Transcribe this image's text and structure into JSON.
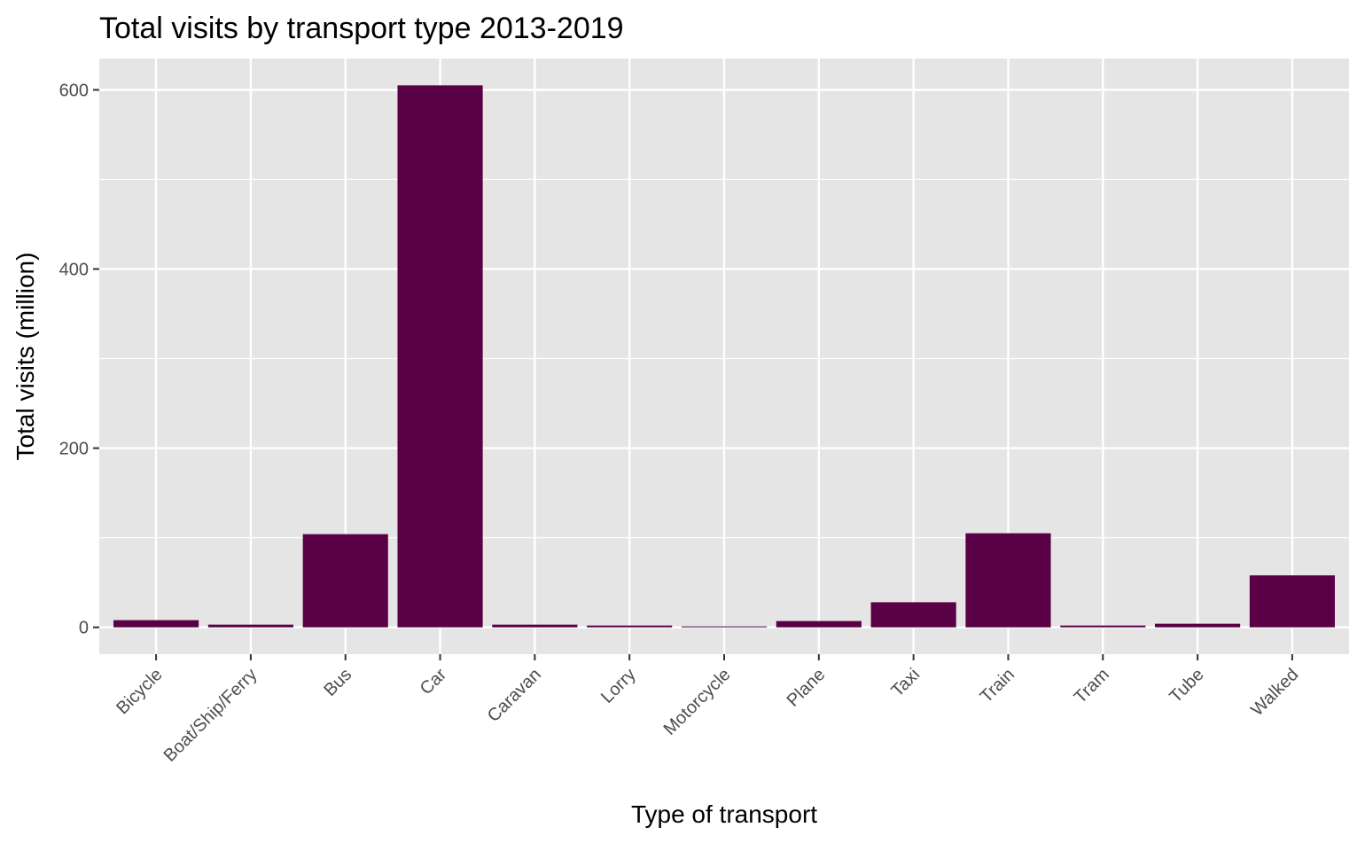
{
  "chart_data": {
    "type": "bar",
    "title": "Total visits by transport type 2013-2019",
    "xlabel": "Type of transport",
    "ylabel": "Total visits (million)",
    "categories": [
      "Bicycle",
      "Boat/Ship/Ferry",
      "Bus",
      "Car",
      "Caravan",
      "Lorry",
      "Motorcycle",
      "Plane",
      "Taxi",
      "Train",
      "Tram",
      "Tube",
      "Walked"
    ],
    "values": [
      8,
      3,
      104,
      605,
      3,
      2,
      1,
      7,
      28,
      105,
      2,
      4,
      58
    ],
    "ylim": [
      -30,
      635
    ],
    "yticks": [
      0,
      200,
      400,
      600
    ],
    "grid": true,
    "legend": "none",
    "colors": {
      "bar": "#5a0047",
      "panel": "#e5e5e5",
      "grid": "#ffffff",
      "tick_text": "#4d4d4d"
    }
  }
}
